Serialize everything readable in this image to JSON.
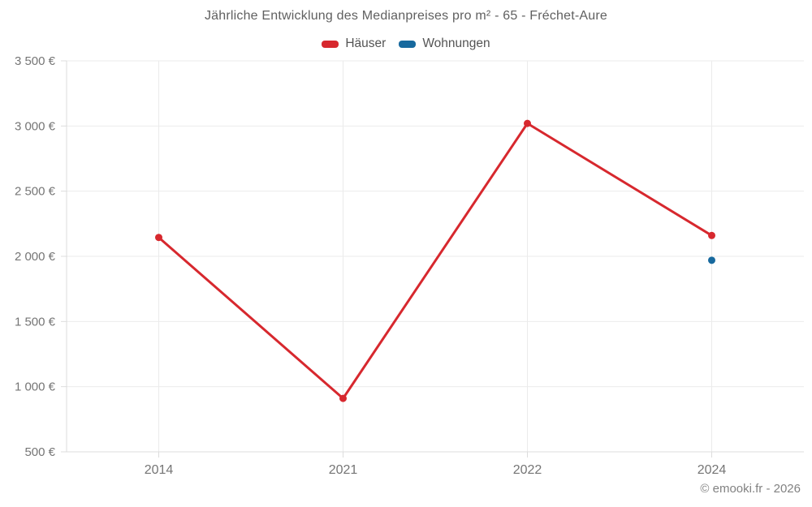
{
  "title": "Jährliche Entwicklung des Medianpreises pro m² - 65 - Fréchet-Aure",
  "legend": [
    {
      "label": "Häuser",
      "color": "#d7282e"
    },
    {
      "label": "Wohnungen",
      "color": "#17699e"
    }
  ],
  "footer": "© emooki.fr - 2026",
  "chart_data": {
    "type": "line",
    "title": "Jährliche Entwicklung des Medianpreises pro m² - 65 - Fréchet-Aure",
    "categories": [
      "2014",
      "2021",
      "2022",
      "2024"
    ],
    "series": [
      {
        "name": "Häuser",
        "color": "#d7282e",
        "values": [
          2145,
          910,
          3020,
          2160
        ]
      },
      {
        "name": "Wohnungen",
        "color": "#17699e",
        "values": [
          null,
          null,
          null,
          1970
        ]
      }
    ],
    "xlabel": "",
    "ylabel": "",
    "ylim": [
      500,
      3500
    ],
    "yticks": [
      {
        "value": 500,
        "label": "500 €"
      },
      {
        "value": 1000,
        "label": "1 000 €"
      },
      {
        "value": 1500,
        "label": "1 500 €"
      },
      {
        "value": 2000,
        "label": "2 000 €"
      },
      {
        "value": 2500,
        "label": "2 500 €"
      },
      {
        "value": 3000,
        "label": "3 000 €"
      },
      {
        "value": 3500,
        "label": "3 500 €"
      }
    ],
    "grid": true,
    "grid_color": "#ebebeb",
    "axis_color": "#dcdcdc",
    "legend_position": "top"
  }
}
